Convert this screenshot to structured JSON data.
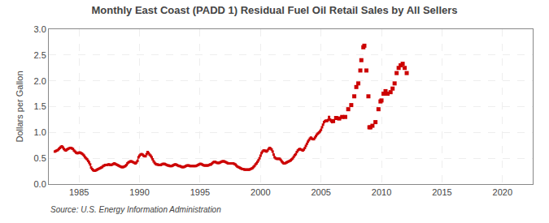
{
  "chart_data": {
    "type": "line",
    "title": "Monthly East Coast (PADD 1) Residual Fuel Oil Retail Sales by All Sellers",
    "ylabel": "Dollars per Gallon",
    "annotations": [
      "Source: U.S. Energy Information Administration"
    ],
    "xlim": [
      1982.5,
      2022.5
    ],
    "ylim": [
      0.0,
      3.0
    ],
    "xticks": [
      1985,
      1990,
      1995,
      2000,
      2005,
      2010,
      2015,
      2020
    ],
    "yticks": [
      {
        "value": 0.0,
        "label": "0.0"
      },
      0.5,
      {
        "value": 1.0,
        "label": "1.0"
      },
      1.5,
      {
        "value": 2.0,
        "label": "2.0"
      },
      2.5,
      {
        "value": 3.0,
        "label": "3.0"
      }
    ],
    "grid": true,
    "series": [
      {
        "type": "line",
        "color": "#cc0000",
        "marker": "square",
        "line_style": "solid",
        "x": [
          1983.0,
          1983.083,
          1983.167,
          1983.25,
          1983.333,
          1983.417,
          1983.5,
          1983.583,
          1983.667,
          1983.75,
          1983.833,
          1983.917,
          1984.0,
          1984.083,
          1984.167,
          1984.25,
          1984.333,
          1984.417,
          1984.5,
          1984.583,
          1984.667,
          1984.75,
          1984.833,
          1984.917,
          1985.0,
          1985.083,
          1985.167,
          1985.25,
          1985.333,
          1985.417,
          1985.5,
          1985.583,
          1985.667,
          1985.75,
          1985.833,
          1985.917,
          1986.0,
          1986.083,
          1986.167,
          1986.25,
          1986.333,
          1986.417,
          1986.5,
          1986.583,
          1986.667,
          1986.75,
          1986.833,
          1986.917,
          1987.0,
          1987.083,
          1987.167,
          1987.25,
          1987.333,
          1987.417,
          1987.5,
          1987.583,
          1987.667,
          1987.75,
          1987.833,
          1987.917,
          1988.0,
          1988.083,
          1988.167,
          1988.25,
          1988.333,
          1988.417,
          1988.5,
          1988.583,
          1988.667,
          1988.75,
          1988.833,
          1988.917,
          1989.0,
          1989.083,
          1989.167,
          1989.25,
          1989.333,
          1989.417,
          1989.5,
          1989.583,
          1989.667,
          1989.75,
          1989.833,
          1989.917,
          1990.0,
          1990.083,
          1990.167,
          1990.25,
          1990.333,
          1990.417,
          1990.5,
          1990.583,
          1990.667,
          1990.75,
          1990.833,
          1990.917,
          1991.0,
          1991.083,
          1991.167,
          1991.25,
          1991.333,
          1991.417,
          1991.5,
          1991.583,
          1991.667,
          1991.75,
          1991.833,
          1991.917,
          1992.0,
          1992.083,
          1992.167,
          1992.25,
          1992.333,
          1992.417,
          1992.5,
          1992.583,
          1992.667,
          1992.75,
          1992.833,
          1992.917,
          1993.0,
          1993.083,
          1993.167,
          1993.25,
          1993.333,
          1993.417,
          1993.5,
          1993.583,
          1993.667,
          1993.75,
          1993.833,
          1993.917,
          1994.0,
          1994.083,
          1994.167,
          1994.25,
          1994.333,
          1994.417,
          1994.5,
          1994.583,
          1994.667,
          1994.75,
          1994.833,
          1994.917,
          1995.0,
          1995.083,
          1995.167,
          1995.25,
          1995.333,
          1995.417,
          1995.5,
          1995.583,
          1995.667,
          1995.75,
          1995.833,
          1995.917,
          1996.0,
          1996.083,
          1996.167,
          1996.25,
          1996.333,
          1996.417,
          1996.5,
          1996.583,
          1996.667,
          1996.75,
          1996.833,
          1996.917,
          1997.0,
          1997.083,
          1997.167,
          1997.25,
          1997.333,
          1997.417,
          1997.5,
          1997.583,
          1997.667,
          1997.75,
          1997.833,
          1997.917,
          1998.0,
          1998.083,
          1998.167,
          1998.25,
          1998.333,
          1998.417,
          1998.5,
          1998.583,
          1998.667,
          1998.75,
          1998.833,
          1998.917,
          1999.0,
          1999.083,
          1999.167,
          1999.25,
          1999.333,
          1999.417,
          1999.5,
          1999.583,
          1999.667,
          1999.75,
          1999.833,
          1999.917,
          2000.0,
          2000.083,
          2000.167,
          2000.25,
          2000.333,
          2000.417,
          2000.5,
          2000.583,
          2000.667,
          2000.75,
          2000.833,
          2000.917,
          2001.0,
          2001.083,
          2001.167,
          2001.25,
          2001.333,
          2001.417,
          2001.5,
          2001.583,
          2001.667,
          2001.75,
          2001.833,
          2001.917,
          2002.0,
          2002.083,
          2002.167,
          2002.25,
          2002.333,
          2002.417,
          2002.5,
          2002.583,
          2002.667,
          2002.75,
          2002.833,
          2002.917,
          2003.0,
          2003.083,
          2003.167,
          2003.25,
          2003.333,
          2003.417,
          2003.5,
          2003.583,
          2003.667,
          2003.75,
          2003.833,
          2003.917,
          2004.0,
          2004.083,
          2004.167,
          2004.25,
          2004.333,
          2004.417,
          2004.5,
          2004.583,
          2004.667,
          2004.75,
          2004.833,
          2004.917,
          2005.0,
          2005.083,
          2005.167,
          2005.25,
          2005.333,
          2005.417,
          2005.5,
          2005.583,
          2005.667,
          2005.75,
          2005.833,
          2005.917
        ],
        "values": [
          0.63,
          0.64,
          0.65,
          0.66,
          0.68,
          0.7,
          0.72,
          0.73,
          0.71,
          0.68,
          0.66,
          0.65,
          0.67,
          0.68,
          0.69,
          0.7,
          0.7,
          0.69,
          0.68,
          0.65,
          0.63,
          0.61,
          0.6,
          0.6,
          0.61,
          0.61,
          0.6,
          0.59,
          0.57,
          0.55,
          0.52,
          0.5,
          0.48,
          0.45,
          0.42,
          0.38,
          0.32,
          0.29,
          0.27,
          0.26,
          0.26,
          0.27,
          0.28,
          0.29,
          0.3,
          0.31,
          0.32,
          0.33,
          0.35,
          0.36,
          0.37,
          0.37,
          0.37,
          0.38,
          0.38,
          0.37,
          0.37,
          0.38,
          0.39,
          0.4,
          0.39,
          0.38,
          0.37,
          0.36,
          0.35,
          0.34,
          0.33,
          0.33,
          0.33,
          0.34,
          0.35,
          0.37,
          0.4,
          0.42,
          0.43,
          0.44,
          0.44,
          0.43,
          0.42,
          0.41,
          0.4,
          0.42,
          0.45,
          0.52,
          0.55,
          0.57,
          0.58,
          0.57,
          0.55,
          0.54,
          0.54,
          0.58,
          0.62,
          0.6,
          0.57,
          0.55,
          0.52,
          0.48,
          0.44,
          0.41,
          0.39,
          0.38,
          0.38,
          0.37,
          0.37,
          0.37,
          0.38,
          0.39,
          0.39,
          0.39,
          0.38,
          0.37,
          0.36,
          0.36,
          0.35,
          0.35,
          0.35,
          0.36,
          0.37,
          0.38,
          0.38,
          0.37,
          0.36,
          0.35,
          0.35,
          0.34,
          0.33,
          0.33,
          0.33,
          0.34,
          0.35,
          0.36,
          0.36,
          0.36,
          0.35,
          0.35,
          0.35,
          0.35,
          0.35,
          0.35,
          0.35,
          0.36,
          0.37,
          0.38,
          0.39,
          0.39,
          0.38,
          0.37,
          0.36,
          0.36,
          0.36,
          0.36,
          0.36,
          0.37,
          0.38,
          0.38,
          0.4,
          0.42,
          0.43,
          0.43,
          0.42,
          0.41,
          0.41,
          0.41,
          0.42,
          0.43,
          0.44,
          0.44,
          0.44,
          0.43,
          0.42,
          0.41,
          0.4,
          0.4,
          0.4,
          0.4,
          0.4,
          0.4,
          0.39,
          0.38,
          0.36,
          0.34,
          0.33,
          0.32,
          0.31,
          0.3,
          0.29,
          0.29,
          0.28,
          0.28,
          0.28,
          0.28,
          0.28,
          0.28,
          0.29,
          0.3,
          0.31,
          0.33,
          0.35,
          0.38,
          0.4,
          0.43,
          0.46,
          0.5,
          0.55,
          0.6,
          0.63,
          0.65,
          0.65,
          0.64,
          0.63,
          0.65,
          0.68,
          0.7,
          0.69,
          0.67,
          0.63,
          0.57,
          0.52,
          0.5,
          0.49,
          0.49,
          0.49,
          0.49,
          0.47,
          0.44,
          0.42,
          0.4,
          0.4,
          0.41,
          0.42,
          0.43,
          0.44,
          0.45,
          0.46,
          0.48,
          0.5,
          0.53,
          0.56,
          0.58,
          0.62,
          0.65,
          0.67,
          0.68,
          0.67,
          0.66,
          0.65,
          0.67,
          0.7,
          0.74,
          0.78,
          0.82,
          0.85,
          0.88,
          0.9,
          0.88,
          0.87,
          0.87,
          0.9,
          0.93,
          0.96,
          0.98,
          1.0,
          1.02,
          1.05,
          1.1,
          1.15,
          1.2,
          1.22,
          1.23,
          1.22,
          1.24,
          1.3,
          1.25,
          1.22,
          1.2
        ]
      },
      {
        "type": "scatter",
        "color": "#cc0000",
        "marker": "square",
        "x": [
          2006.0,
          2006.25,
          2006.5,
          2006.75,
          2007.0,
          2007.25,
          2007.5,
          2007.75,
          2007.917,
          2008.083,
          2008.25,
          2008.333,
          2008.5,
          2008.583,
          2008.75,
          2008.917,
          2009.0,
          2009.083,
          2009.25,
          2009.5,
          2009.75,
          2009.917,
          2010.0,
          2010.167,
          2010.333,
          2010.5,
          2010.75,
          2010.917,
          2011.083,
          2011.25,
          2011.417,
          2011.583,
          2011.75,
          2011.917,
          2012.083
        ],
        "values": [
          1.22,
          1.28,
          1.27,
          1.3,
          1.3,
          1.45,
          1.53,
          1.7,
          1.88,
          1.95,
          2.2,
          2.4,
          2.65,
          2.68,
          2.2,
          1.7,
          1.1,
          1.1,
          1.13,
          1.2,
          1.45,
          1.6,
          1.62,
          1.75,
          1.8,
          1.75,
          1.78,
          1.85,
          1.95,
          2.15,
          2.25,
          2.3,
          2.33,
          2.25,
          2.15
        ]
      }
    ]
  }
}
